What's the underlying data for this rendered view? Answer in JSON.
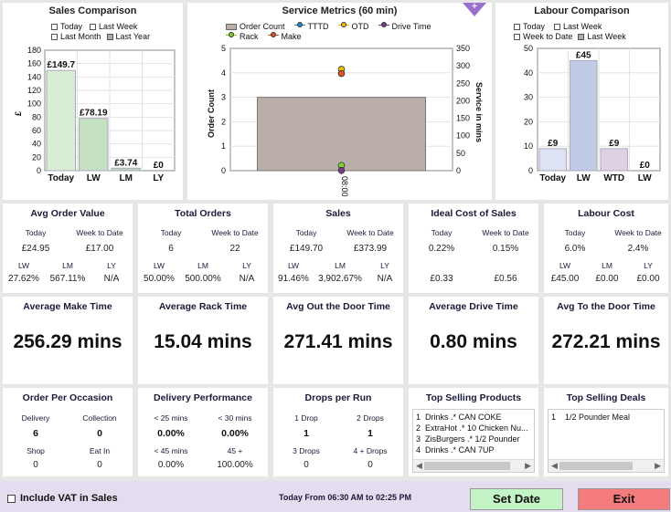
{
  "sales_comparison": {
    "title": "Sales Comparison",
    "legend": [
      {
        "label": "Today",
        "checked": false
      },
      {
        "label": "Last Week",
        "checked": false
      },
      {
        "label": "Last Month",
        "checked": false
      },
      {
        "label": "Last Year",
        "checked": true
      }
    ],
    "ylabel": "£",
    "yticks": [
      "180",
      "160",
      "140",
      "120",
      "100",
      "80",
      "60",
      "40",
      "20",
      "0"
    ],
    "colors": {
      "today": "#d9ecd6",
      "lw": "#c5dfc1",
      "lm": "#b9d5b5",
      "ly": "#b0d0ab"
    }
  },
  "service_metrics": {
    "title": "Service Metrics (60 min)",
    "legend": [
      {
        "label": "Order Count",
        "color": "#b9aea8",
        "kind": "box"
      },
      {
        "label": "TTTD",
        "color": "#2a88d0",
        "kind": "dot"
      },
      {
        "label": "OTD",
        "color": "#f2c200",
        "kind": "dot"
      },
      {
        "label": "Drive Time",
        "color": "#7b3c8c",
        "kind": "dot"
      },
      {
        "label": "Rack",
        "color": "#7fd32a",
        "kind": "dot"
      },
      {
        "label": "Make",
        "color": "#e0502a",
        "kind": "dot"
      }
    ],
    "ylabel_left": "Order Count",
    "ylabel_right": "Service in mins",
    "yticks_left": [
      "5",
      "4",
      "3",
      "2",
      "1",
      "0"
    ],
    "yticks_right": [
      "350",
      "300",
      "250",
      "200",
      "150",
      "100",
      "50",
      "0"
    ],
    "xtick": "08:00"
  },
  "labour_comparison": {
    "title": "Labour Comparison",
    "legend": [
      {
        "label": "Today",
        "checked": false
      },
      {
        "label": "Last Week",
        "checked": false
      },
      {
        "label": "Week to Date",
        "checked": false
      },
      {
        "label": "Last Week",
        "checked": true
      }
    ],
    "yticks": [
      "50",
      "40",
      "30",
      "20",
      "10",
      "0"
    ]
  },
  "chart_data": [
    {
      "type": "bar",
      "title": "Sales Comparison",
      "categories": [
        "Today",
        "LW",
        "LM",
        "LY"
      ],
      "values": [
        149.7,
        78.19,
        3.74,
        0
      ],
      "labels": [
        "£149.7",
        "£78.19",
        "£3.74",
        "£0"
      ],
      "ylabel": "£",
      "ylim": [
        0,
        180
      ]
    },
    {
      "type": "bar",
      "title": "Service Metrics (60 min)",
      "categories": [
        "08:00"
      ],
      "series": [
        {
          "name": "Order Count",
          "axis": "left",
          "values": [
            3
          ]
        },
        {
          "name": "OTD",
          "axis": "right",
          "values": [
            290
          ]
        },
        {
          "name": "Make",
          "axis": "right",
          "values": [
            278
          ]
        },
        {
          "name": "Rack",
          "axis": "right",
          "values": [
            15
          ]
        },
        {
          "name": "Drive Time",
          "axis": "right",
          "values": [
            0.8
          ]
        }
      ],
      "ylim_left": [
        0,
        5
      ],
      "ylim_right": [
        0,
        350
      ],
      "ylabel": "Order Count",
      "ylabel_right": "Service in mins"
    },
    {
      "type": "bar",
      "title": "Labour Comparison",
      "categories": [
        "Today",
        "LW",
        "WTD",
        "LW"
      ],
      "values": [
        9,
        45,
        9,
        0
      ],
      "labels": [
        "£9",
        "£45",
        "£9",
        "£0"
      ],
      "colors": [
        "#dde3f4",
        "#c1cbe6",
        "#ded1e6",
        "#ffffff"
      ],
      "ylim": [
        0,
        50
      ]
    }
  ],
  "kpis": {
    "avg_order_value": {
      "title": "Avg Order Value",
      "today_label": "Today",
      "wtd_label": "Week to Date",
      "today": "£24.95",
      "wtd": "£17.00",
      "lw_label": "LW",
      "lm_label": "LM",
      "ly_label": "LY",
      "lw": "27.62%",
      "lm": "567.11%",
      "ly": "N/A"
    },
    "total_orders": {
      "title": "Total Orders",
      "today_label": "Today",
      "wtd_label": "Week to Date",
      "today": "6",
      "wtd": "22",
      "lw_label": "LW",
      "lm_label": "LM",
      "ly_label": "LY",
      "lw": "50.00%",
      "lm": "500.00%",
      "ly": "N/A"
    },
    "sales": {
      "title": "Sales",
      "today_label": "Today",
      "wtd_label": "Week to Date",
      "today": "£149.70",
      "wtd": "£373.99",
      "lw_label": "LW",
      "lm_label": "LM",
      "ly_label": "LY",
      "lw": "91.46%",
      "lm": "3,902.67%",
      "ly": "N/A"
    },
    "ideal_cost": {
      "title": "Ideal Cost of Sales",
      "today_label": "Today",
      "wtd_label": "Week to Date",
      "today": "0.22%",
      "wtd": "0.15%",
      "v1": "£0.33",
      "v2": "£0.56"
    },
    "labour_cost": {
      "title": "Labour Cost",
      "today_label": "Today",
      "wtd_label": "Week to Date",
      "today": "6.0%",
      "wtd": "2.4%",
      "lw_label": "LW",
      "lm_label": "LM",
      "ly_label": "LY",
      "lw": "£45.00",
      "lm": "£0.00",
      "ly": "£0.00"
    }
  },
  "times": {
    "make": {
      "title": "Average Make Time",
      "value": "256.29 mins"
    },
    "rack": {
      "title": "Average Rack Time",
      "value": "15.04 mins"
    },
    "otd": {
      "title": "Avg Out the Door Time",
      "value": "271.41 mins"
    },
    "drive": {
      "title": "Average Drive Time",
      "value": "0.80 mins"
    },
    "ttd": {
      "title": "Avg To the Door Time",
      "value": "272.21 mins"
    }
  },
  "occasion": {
    "title": "Order Per Occasion",
    "delivery_label": "Delivery",
    "delivery": "6",
    "collection_label": "Collection",
    "collection": "0",
    "shop_label": "Shop",
    "shop": "0",
    "eatin_label": "Eat In",
    "eatin": "0"
  },
  "delivery_perf": {
    "title": "Delivery Performance",
    "l1": "< 25 mins",
    "v1": "0.00%",
    "l2": "< 30 mins",
    "v2": "0.00%",
    "l3": "< 45 mins",
    "v3": "0.00%",
    "l4": "45 +",
    "v4": "100.00%"
  },
  "drops": {
    "title": "Drops per Run",
    "l1": "1 Drop",
    "v1": "1",
    "l2": "2 Drops",
    "v2": "1",
    "l3": "3 Drops",
    "v3": "0",
    "l4": "4 + Drops",
    "v4": "0"
  },
  "top_products": {
    "title": "Top Selling Products",
    "items": [
      {
        "n": "1",
        "t": "Drinks .* CAN COKE"
      },
      {
        "n": "2",
        "t": "ExtraHot .* 10 Chicken Nu..."
      },
      {
        "n": "3",
        "t": "ZisBurgers .* 1/2 Pounder"
      },
      {
        "n": "4",
        "t": "Drinks .* CAN 7UP"
      }
    ]
  },
  "top_deals": {
    "title": "Top Selling Deals",
    "items": [
      {
        "n": "1",
        "t": "1/2 Pounder Meal"
      }
    ]
  },
  "footer": {
    "vat_label": "Include VAT in Sales",
    "vat_checked": false,
    "range_text": "Today From 06:30 AM to 02:25 PM",
    "set_date": "Set Date",
    "exit": "Exit"
  }
}
